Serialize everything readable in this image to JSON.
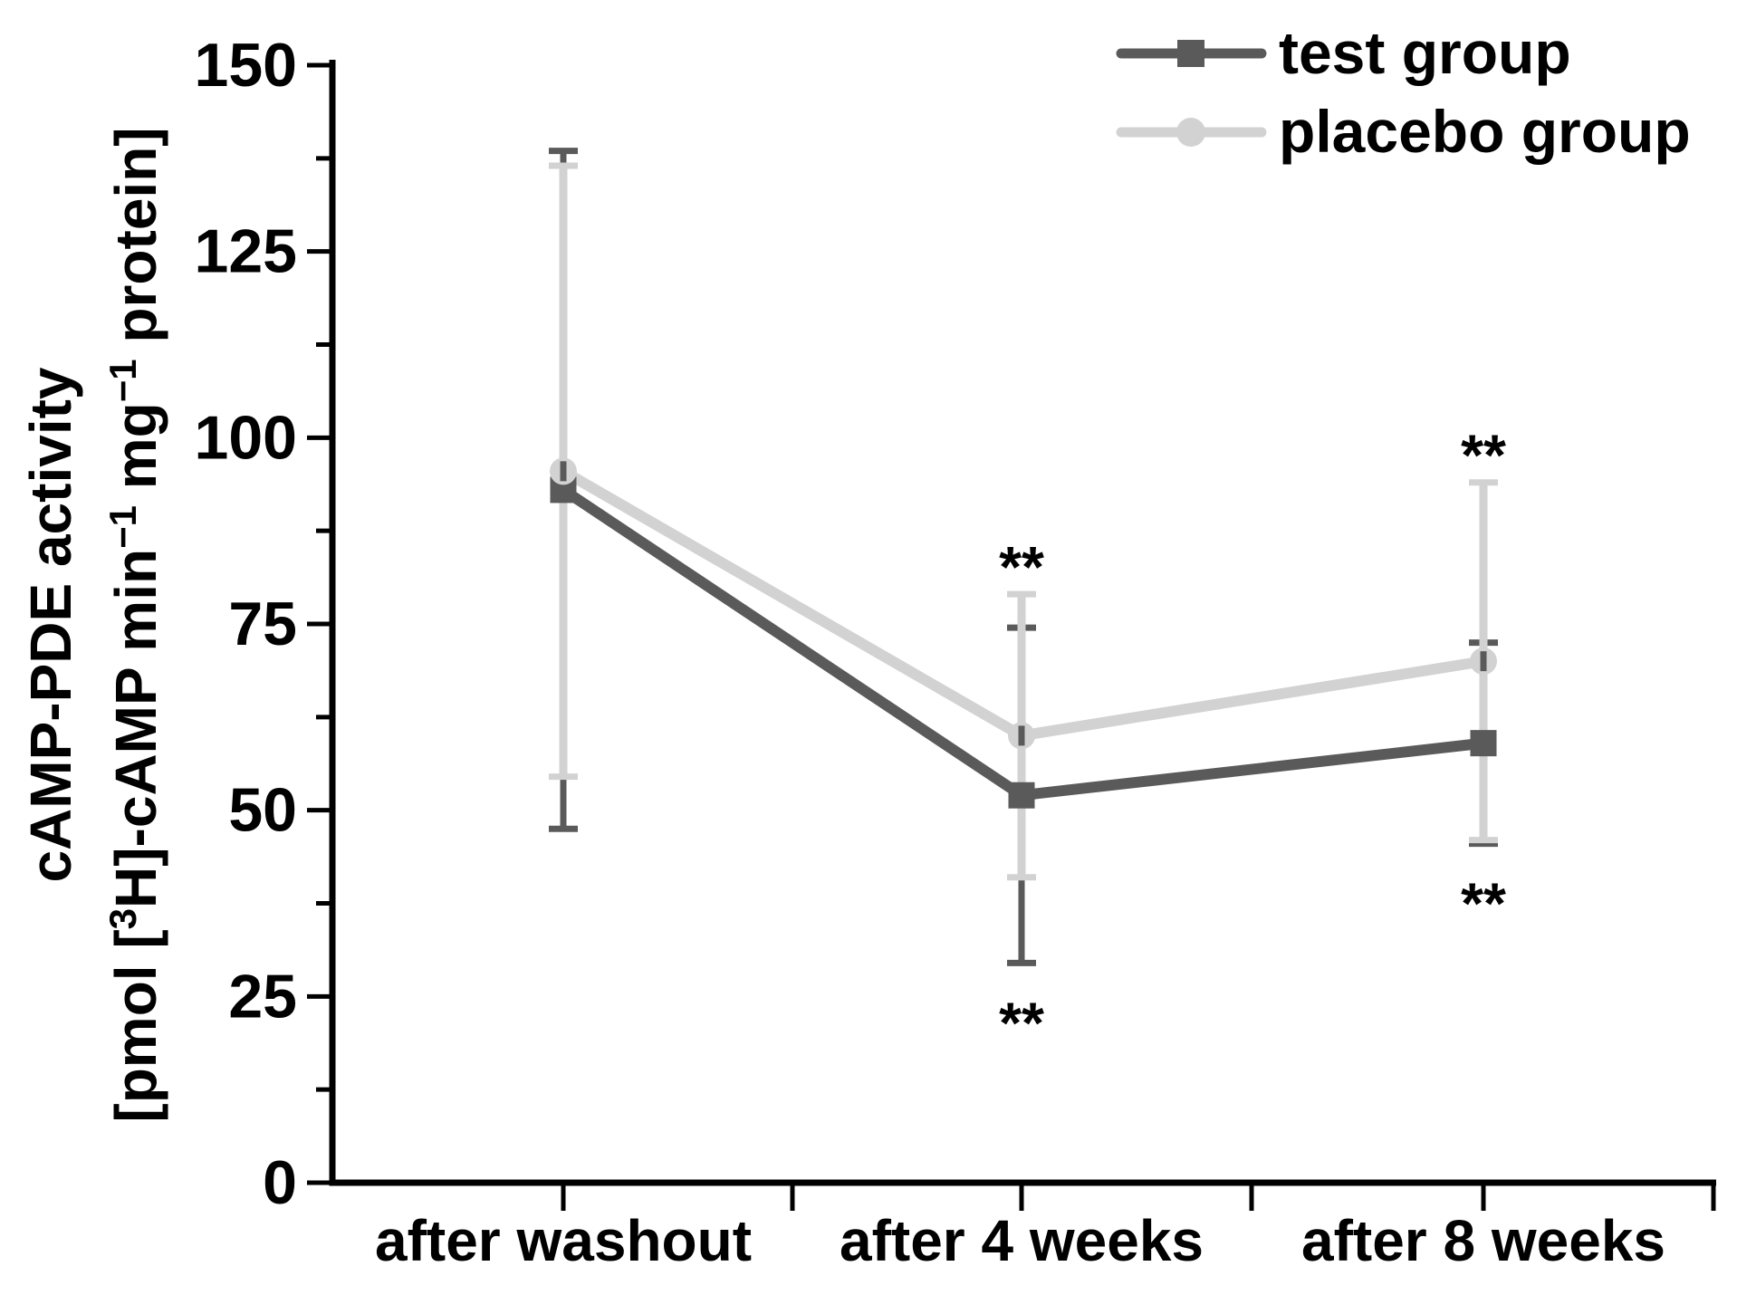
{
  "figure": {
    "background": "#ffffff",
    "axis_color": "#000000",
    "text_color": "#000000"
  },
  "chart_data": {
    "type": "line",
    "title": "",
    "categories": [
      "after washout",
      "after 4 weeks",
      "after 8 weeks"
    ],
    "series": [
      {
        "name": "test group",
        "marker": "square",
        "color": "#5a5a5a",
        "values": [
          93,
          52,
          59
        ],
        "errors": [
          45.5,
          22.5,
          13.5
        ]
      },
      {
        "name": "placebo group",
        "marker": "circle",
        "color": "#d2d2d2",
        "values": [
          95.5,
          60,
          70
        ],
        "errors": [
          41,
          19,
          24
        ]
      }
    ],
    "ylabel_line1": "cAMP-PDE activity",
    "ylabel_line2_segments": [
      {
        "t": "[pmol ["
      },
      {
        "t": "3",
        "sup": true
      },
      {
        "t": "H]-cAMP min"
      },
      {
        "t": "−1",
        "sup": true
      },
      {
        "t": " mg"
      },
      {
        "t": "−1",
        "sup": true
      },
      {
        "t": " protein]"
      }
    ],
    "xlabel": "",
    "y_ticks": [
      0,
      25,
      50,
      75,
      100,
      125,
      150
    ],
    "ylim": [
      0,
      150
    ],
    "y_minor_step": 12.5,
    "x_minor_ticks_between_categories": true,
    "grid": "off",
    "legend_position": "top-right",
    "annotations": [
      {
        "text": "**",
        "category_index": 1,
        "placement": "above"
      },
      {
        "text": "**",
        "category_index": 1,
        "placement": "below"
      },
      {
        "text": "**",
        "category_index": 2,
        "placement": "above"
      },
      {
        "text": "**",
        "category_index": 2,
        "placement": "below"
      }
    ]
  },
  "legend": {
    "items": [
      {
        "label": "test group"
      },
      {
        "label": "placebo group"
      }
    ]
  }
}
